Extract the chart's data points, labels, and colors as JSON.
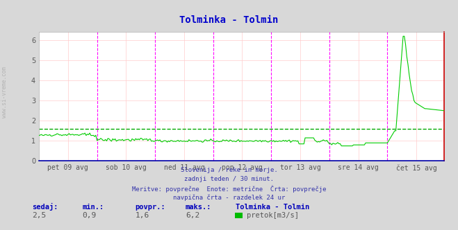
{
  "title": "Tolminka - Tolmin",
  "title_color": "#0000cc",
  "bg_color": "#d8d8d8",
  "plot_bg_color": "#ffffff",
  "ylim": [
    0,
    6.4
  ],
  "yticks": [
    0,
    1,
    2,
    3,
    4,
    5,
    6
  ],
  "grid_color": "#ffcccc",
  "avg_line_value": 1.6,
  "avg_line_color": "#00aa00",
  "line_color": "#00cc00",
  "x_labels": [
    "pet 09 avg",
    "sob 10 avg",
    "ned 11 avg",
    "pon 12 avg",
    "tor 13 avg",
    "sre 14 avg",
    "čet 15 avg"
  ],
  "day_line_color": "#ff00ff",
  "subtitle_lines": [
    "Slovenija / reke in morje.",
    "zadnji teden / 30 minut.",
    "Meritve: povprečne  Enote: metrične  Črta: povprečje",
    "navpična črta - razdelek 24 ur"
  ],
  "footer_labels": [
    "sedaj:",
    "min.:",
    "povpr.:",
    "maks.:"
  ],
  "footer_values": [
    "2,5",
    "0,9",
    "1,6",
    "6,2"
  ],
  "legend_station": "Tolminka - Tolmin",
  "legend_label": "pretok[m3/s]",
  "legend_color": "#00bb00",
  "sidebar_text": "www.si-vreme.com",
  "n_points": 336,
  "days": 7,
  "points_per_day": 48
}
